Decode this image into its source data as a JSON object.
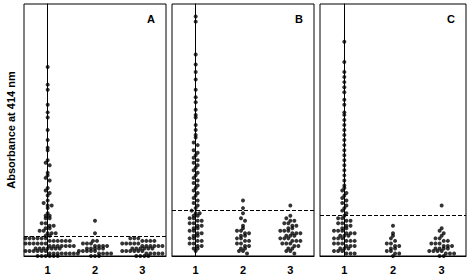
{
  "chart_data": [
    {
      "type": "scatter",
      "title": "A",
      "ylabel": "Absorbance at 414 nm",
      "categories": [
        "1",
        "2",
        "3"
      ],
      "values": [
        [
          75,
          68,
          66,
          60,
          57,
          55,
          50,
          46,
          43,
          42,
          38,
          37,
          36,
          33,
          32,
          31,
          30,
          27,
          26,
          25,
          24,
          22,
          21,
          20,
          20,
          19,
          17,
          16,
          16,
          15,
          15,
          13,
          13,
          12,
          12,
          11,
          11,
          10,
          10,
          9,
          9,
          9,
          8,
          8,
          7,
          7,
          7,
          7,
          7,
          7,
          6,
          6,
          6,
          6,
          6,
          6,
          5,
          5,
          5,
          5,
          5,
          5,
          5,
          4,
          4,
          4,
          4,
          4,
          4,
          4,
          3,
          3,
          3,
          3,
          3,
          3,
          3,
          2,
          2,
          2,
          2,
          2,
          2,
          2,
          2,
          1,
          1,
          1,
          1,
          1,
          1,
          1,
          1,
          0,
          0,
          0,
          0,
          0,
          0
        ],
        [
          14,
          9,
          6,
          6,
          5,
          5,
          5,
          4,
          4,
          4,
          4,
          3,
          3,
          3,
          3,
          3,
          2,
          2,
          2,
          2,
          2,
          1,
          1,
          1,
          1,
          0,
          0,
          0
        ],
        [
          7,
          7,
          7,
          6,
          6,
          6,
          6,
          5,
          5,
          5,
          5,
          5,
          4,
          4,
          4,
          4,
          4,
          4,
          3,
          3,
          3,
          3,
          3,
          3,
          2,
          2,
          2,
          2,
          2,
          2,
          1,
          1,
          1,
          1,
          1,
          0,
          0,
          0,
          0
        ]
      ],
      "cutoff": 8,
      "ylim": [
        0,
        100
      ],
      "tick_labels": "x",
      "color": "#000000",
      "marker": "circle",
      "line_style": "dashed",
      "grid": false
    },
    {
      "type": "scatter",
      "title": "B",
      "categories": [
        "1",
        "2",
        "3"
      ],
      "values": [
        [
          95,
          93,
          80,
          76,
          73,
          70,
          66,
          63,
          61,
          58,
          56,
          55,
          52,
          50,
          48,
          47,
          45,
          44,
          42,
          41,
          40,
          39,
          38,
          37,
          36,
          35,
          34,
          33,
          32,
          31,
          30,
          29,
          28,
          27,
          26,
          25,
          24,
          23,
          22,
          21,
          20,
          19,
          18,
          17,
          17,
          16,
          16,
          15,
          15,
          14,
          14,
          13,
          13,
          12,
          12,
          11,
          11,
          10,
          10,
          9,
          9,
          8,
          8,
          7,
          7,
          6,
          6,
          5,
          5,
          4,
          4,
          3,
          3,
          2
        ],
        [
          22,
          19,
          17,
          15,
          14,
          12,
          11,
          10,
          10,
          9,
          9,
          8,
          8,
          7,
          7,
          6,
          6,
          5,
          5,
          4,
          4,
          3,
          3,
          2,
          2,
          1
        ],
        [
          20,
          16,
          15,
          14,
          14,
          13,
          13,
          12,
          12,
          11,
          11,
          10,
          10,
          10,
          9,
          9,
          9,
          8,
          8,
          8,
          7,
          7,
          7,
          6,
          6,
          6,
          5,
          5,
          5,
          4,
          4,
          3,
          3,
          2,
          2,
          1
        ]
      ],
      "cutoff": 18,
      "ylim": [
        0,
        100
      ],
      "tick_labels": "x",
      "color": "#000000",
      "marker": "circle",
      "line_style": "dashed",
      "grid": false
    },
    {
      "type": "scatter",
      "title": "C",
      "categories": [
        "1",
        "2",
        "3"
      ],
      "values": [
        [
          85,
          77,
          73,
          71,
          69,
          67,
          65,
          62,
          60,
          57,
          56,
          54,
          52,
          50,
          48,
          46,
          44,
          42,
          40,
          38,
          36,
          34,
          32,
          30,
          28,
          27,
          26,
          25,
          24,
          23,
          22,
          21,
          20,
          19,
          18,
          17,
          16,
          15,
          15,
          14,
          14,
          13,
          13,
          12,
          12,
          11,
          11,
          10,
          10,
          10,
          9,
          9,
          9,
          8,
          8,
          8,
          7,
          7,
          7,
          6,
          6,
          6,
          5,
          5,
          5,
          4,
          4,
          4,
          3,
          3,
          3,
          2,
          2,
          2,
          1,
          1,
          1
        ],
        [
          12,
          9,
          8,
          7,
          6,
          5,
          5,
          4,
          4,
          3,
          3,
          2,
          2,
          1,
          1,
          0
        ],
        [
          20,
          11,
          10,
          9,
          8,
          7,
          7,
          6,
          6,
          5,
          5,
          5,
          4,
          4,
          4,
          3,
          3,
          3,
          3,
          2,
          2,
          2,
          2,
          1,
          1,
          1,
          0,
          0
        ]
      ],
      "cutoff": 16,
      "ylim": [
        0,
        100
      ],
      "tick_labels": "x",
      "color": "#000000",
      "marker": "circle",
      "line_style": "dashed",
      "grid": false
    }
  ]
}
